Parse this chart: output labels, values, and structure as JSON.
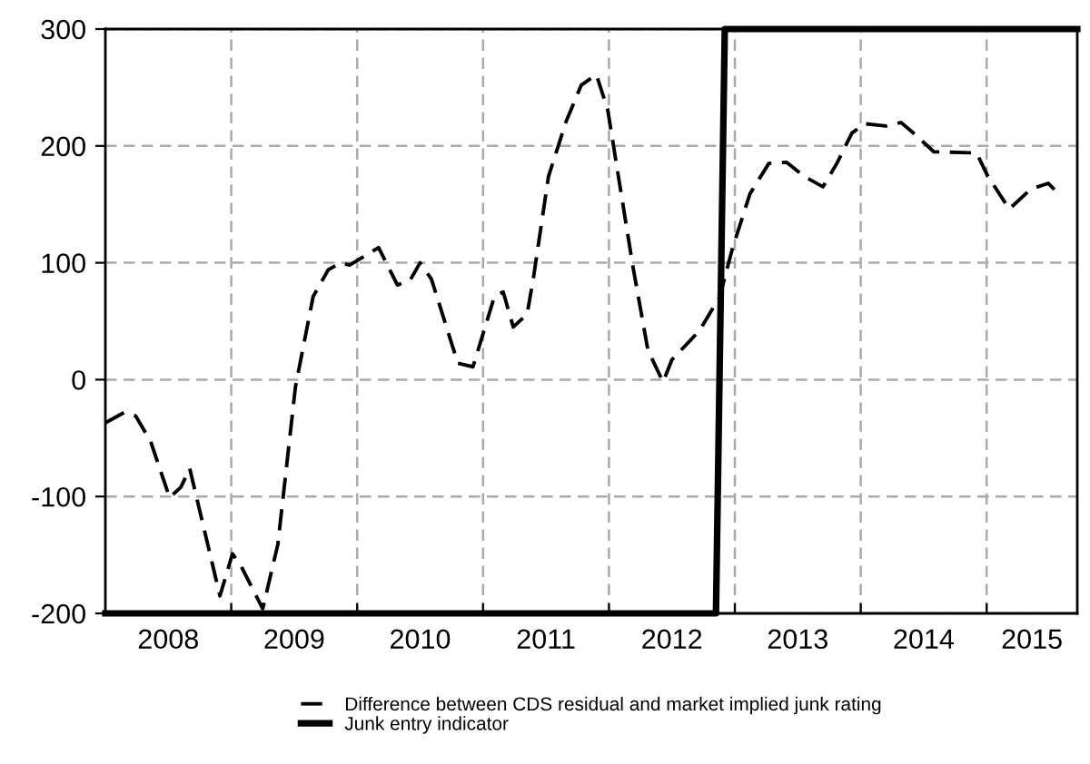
{
  "chart_data": {
    "type": "line",
    "xlim": [
      2008.0,
      2015.72
    ],
    "xticks": [
      {
        "value": 2009,
        "label": null
      },
      {
        "value": 2010,
        "label": null
      },
      {
        "value": 2011,
        "label": null
      },
      {
        "value": 2012,
        "label": null
      },
      {
        "value": 2013,
        "label": null
      },
      {
        "value": 2014,
        "label": null
      },
      {
        "value": 2015,
        "label": null
      },
      {
        "value": 2008.5,
        "label": "2008"
      },
      {
        "value": 2009.5,
        "label": "2009"
      },
      {
        "value": 2010.5,
        "label": "2010"
      },
      {
        "value": 2011.5,
        "label": "2011"
      },
      {
        "value": 2012.5,
        "label": "2012"
      },
      {
        "value": 2013.5,
        "label": "2013"
      },
      {
        "value": 2014.5,
        "label": "2014"
      },
      {
        "value": 2015.36,
        "label": "2015"
      }
    ],
    "ylim": [
      -200,
      300
    ],
    "yticks": [
      -200,
      -100,
      0,
      100,
      200,
      300
    ],
    "grid": true,
    "legend": "bottom",
    "series": [
      {
        "name": "Difference between CDS residual and market implied junk rating",
        "color": "#000000",
        "line_style": "dashed",
        "x": [
          2008.0,
          2008.15,
          2008.24,
          2008.36,
          2008.51,
          2008.6,
          2008.67,
          2008.91,
          2009.01,
          2009.08,
          2009.25,
          2009.37,
          2009.51,
          2009.65,
          2009.77,
          2009.87,
          2009.94,
          2010.17,
          2010.32,
          2010.42,
          2010.5,
          2010.59,
          2010.8,
          2010.92,
          2011.09,
          2011.16,
          2011.24,
          2011.35,
          2011.4,
          2011.52,
          2011.66,
          2011.78,
          2011.9,
          2011.99,
          2012.19,
          2012.31,
          2012.43,
          2012.5,
          2012.72,
          2012.88,
          2012.98,
          2013.12,
          2013.27,
          2013.41,
          2013.55,
          2013.7,
          2013.81,
          2013.93,
          2014.03,
          2014.2,
          2014.32,
          2014.44,
          2014.58,
          2014.92,
          2015.01,
          2015.18,
          2015.35,
          2015.49,
          2015.58
        ],
        "values": [
          -37,
          -28,
          -31,
          -53,
          -101,
          -92,
          -76,
          -185,
          -149,
          -160,
          -196,
          -141,
          -6,
          71,
          94,
          100,
          98,
          113,
          81,
          85,
          100,
          86,
          14,
          11,
          71,
          75,
          45,
          56,
          87,
          174,
          221,
          252,
          261,
          231,
          97,
          25,
          -2,
          17,
          42,
          71,
          112,
          159,
          185,
          186,
          174,
          165,
          185,
          211,
          219,
          217,
          220,
          209,
          195,
          194,
          174,
          146,
          163,
          168,
          158
        ]
      },
      {
        "name": "Junk entry indicator",
        "color": "#000000",
        "line_style": "solid",
        "x": [
          2008.0,
          2012.85,
          2012.92,
          2015.72
        ],
        "values": [
          -200,
          -200,
          300,
          300
        ]
      }
    ]
  }
}
